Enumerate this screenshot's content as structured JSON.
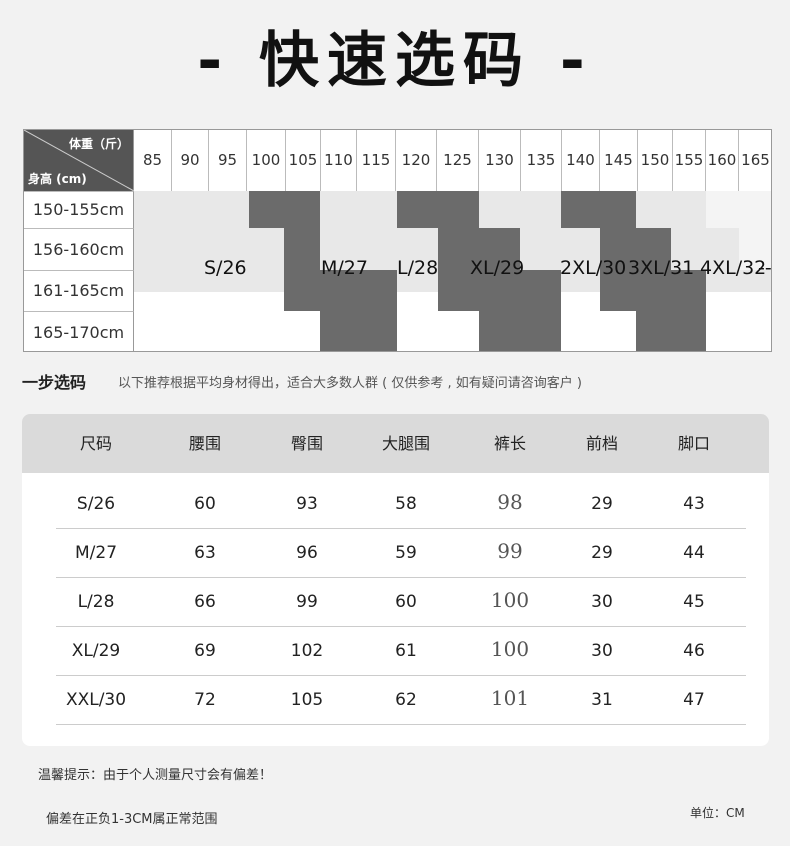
{
  "title": "- 快速选码 -",
  "grid": {
    "weight_label": "体重（斤）",
    "height_label": "身高 (cm)",
    "weights": [
      "85",
      "90",
      "95",
      "100",
      "105",
      "110",
      "115",
      "120",
      "125",
      "130",
      "135",
      "140",
      "145",
      "150",
      "155",
      "160",
      "165"
    ],
    "heights": [
      "150-155cm",
      "156-160cm",
      "161-165cm",
      "165-170cm"
    ],
    "sizes": [
      "S/26",
      "M/27",
      "L/28",
      "XL/29",
      "2XL/30",
      "3XL/31",
      "4XL/32",
      "--"
    ]
  },
  "step": {
    "title": "一步选码",
    "desc": "以下推荐根据平均身材得出，适合大多数人群 ( 仅供参考 , 如有疑问请咨询客户 )"
  },
  "table": {
    "headers": [
      "尺码",
      "腰围",
      "臀围",
      "大腿围",
      "裤长",
      "前档",
      "脚口"
    ],
    "rows": [
      [
        "S/26",
        "60",
        "93",
        "58",
        "98",
        "29",
        "43"
      ],
      [
        "M/27",
        "63",
        "96",
        "59",
        "99",
        "29",
        "44"
      ],
      [
        "L/28",
        "66",
        "99",
        "60",
        "100",
        "30",
        "45"
      ],
      [
        "XL/29",
        "69",
        "102",
        "61",
        "100",
        "30",
        "46"
      ],
      [
        "XXL/30",
        "72",
        "105",
        "62",
        "101",
        "31",
        "47"
      ]
    ]
  },
  "notes": {
    "tip": "温馨提示：由于个人测量尺寸会有偏差！",
    "range": "偏差在正负1-3CM属正常范围",
    "unit": "单位：CM"
  }
}
